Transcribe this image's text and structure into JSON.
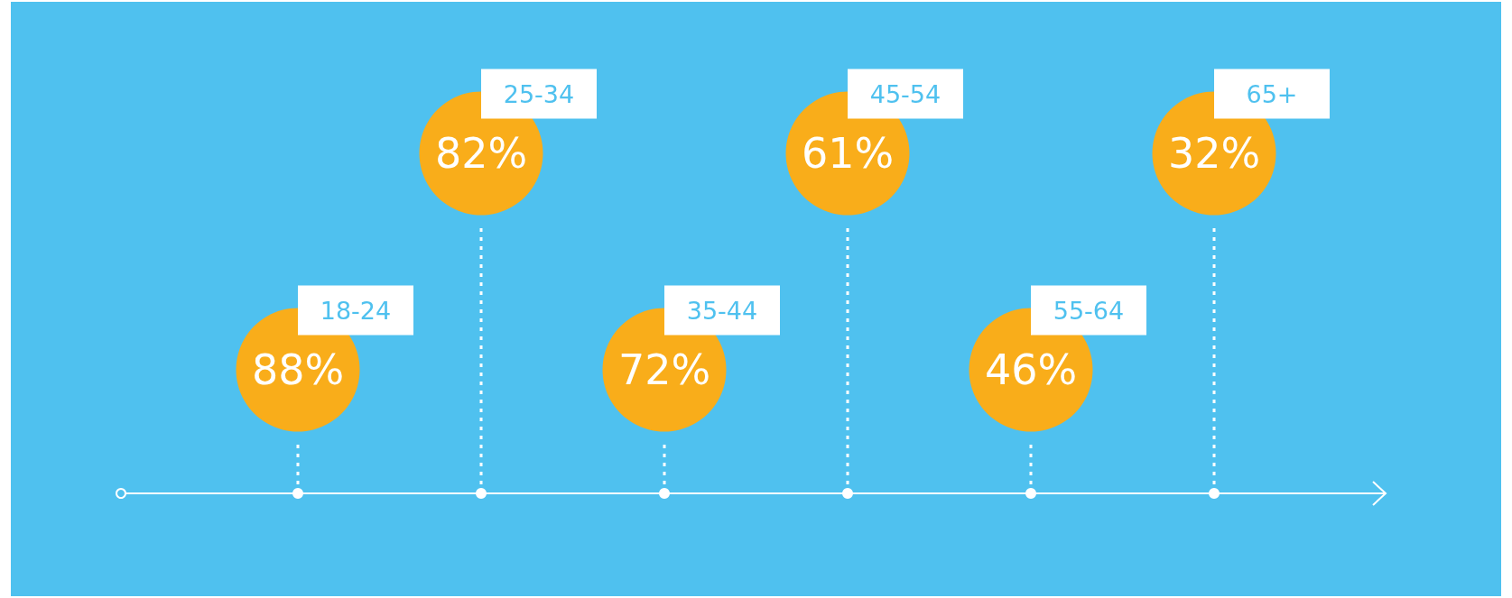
{
  "chart_data": {
    "type": "other",
    "categories": [
      "18-24",
      "25-34",
      "35-44",
      "45-54",
      "55-64",
      "65+"
    ],
    "values": [
      88,
      82,
      72,
      61,
      46,
      32
    ],
    "value_labels": [
      "88%",
      "82%",
      "72%",
      "61%",
      "46%",
      "32%"
    ],
    "color": "#f9ad1a"
  }
}
